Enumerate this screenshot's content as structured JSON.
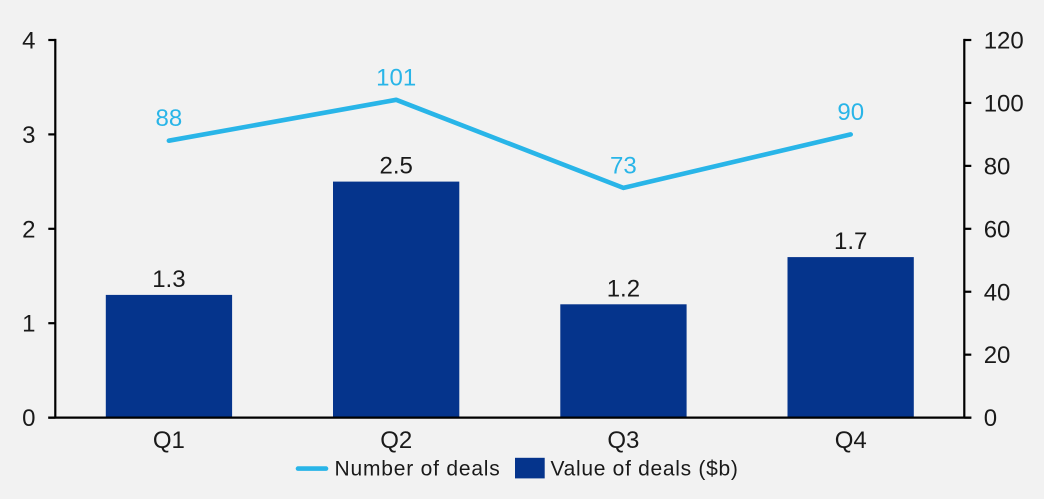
{
  "chart_data": {
    "type": "combo",
    "title": "",
    "categories": [
      "Q1",
      "Q2",
      "Q3",
      "Q4"
    ],
    "series": [
      {
        "name": "Value of deals ($b)",
        "type": "bar",
        "axis": "left",
        "color": "#05348c",
        "values": [
          1.3,
          2.5,
          1.2,
          1.7
        ],
        "labels": [
          "1.3",
          "2.5",
          "1.2",
          "1.7"
        ]
      },
      {
        "name": "Number of deals",
        "type": "line",
        "axis": "right",
        "color": "#29b5e8",
        "values": [
          88,
          101,
          73,
          90
        ],
        "labels": [
          "88",
          "101",
          "73",
          "90"
        ]
      }
    ],
    "left_axis": {
      "min": 0,
      "max": 4,
      "ticks": [
        "0",
        "1",
        "2",
        "3",
        "4"
      ]
    },
    "right_axis": {
      "min": 0,
      "max": 120,
      "ticks": [
        "0",
        "20",
        "40",
        "60",
        "80",
        "100",
        "120"
      ]
    },
    "legend": {
      "position": "bottom",
      "entries": [
        "Number of deals",
        "Value of deals ($b)"
      ]
    },
    "grid": "off",
    "background_color": "#f2f2f2",
    "text_color": "#1a1a1a",
    "axis_color": "#000000"
  }
}
